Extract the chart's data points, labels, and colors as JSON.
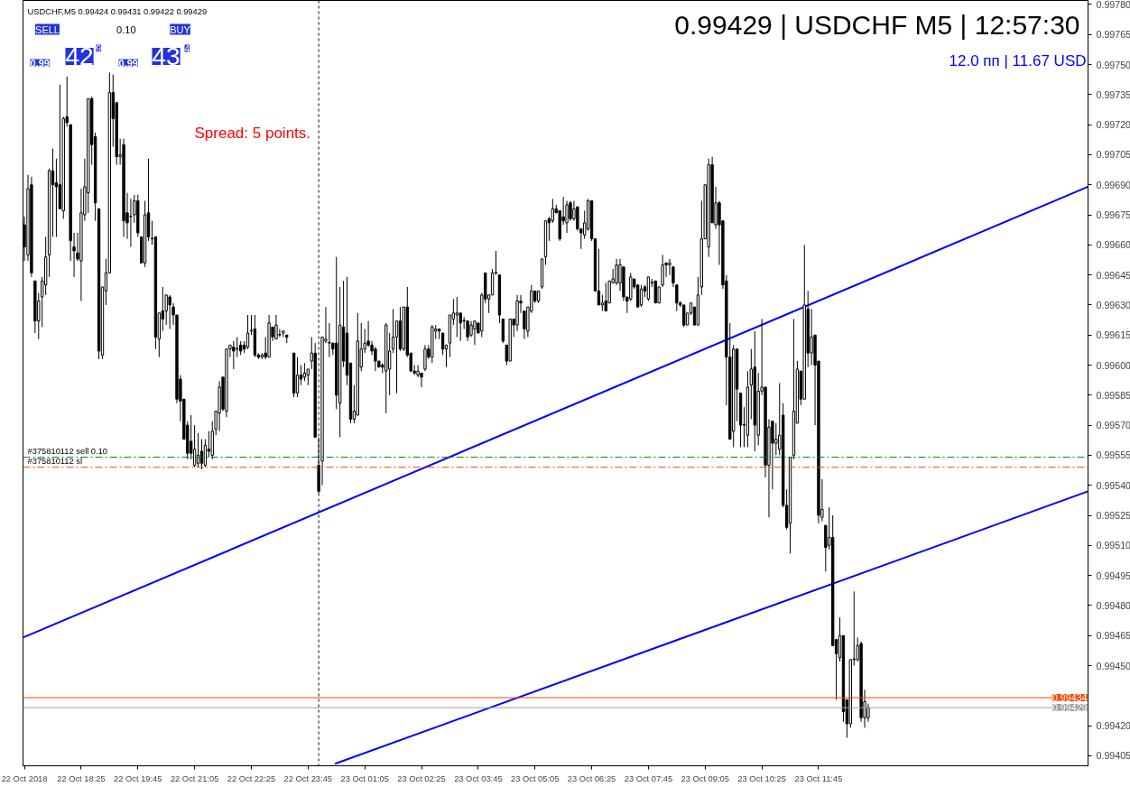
{
  "chart_data": {
    "type": "candlestick",
    "title": "USDCHF,M5  0.99424 0.99431 0.99422 0.99429",
    "annotations": [
      "0.99429 | USDCHF M5 | 12:57:30",
      "12.0 пп | 11.67 USD",
      "Spread: 5 points.",
      "SELL",
      "0.10",
      "BUY",
      "0.99",
      "42",
      "9",
      "0.99",
      "43",
      "4"
    ],
    "x": [
      "2018-10-22T17:05",
      "2018-10-22T17:10",
      "2018-10-22T17:15",
      "2018-10-22T17:20",
      "2018-10-22T17:25",
      "2018-10-22T17:30",
      "2018-10-22T17:35",
      "2018-10-22T17:40",
      "2018-10-22T17:45",
      "2018-10-22T17:50",
      "2018-10-22T17:55",
      "2018-10-22T18:00",
      "2018-10-22T18:05",
      "2018-10-22T18:10",
      "2018-10-22T18:15",
      "2018-10-22T18:20",
      "2018-10-22T18:25",
      "2018-10-22T18:30",
      "2018-10-22T18:35",
      "2018-10-22T18:40",
      "2018-10-22T18:45",
      "2018-10-22T18:50",
      "2018-10-22T18:55",
      "2018-10-22T19:00",
      "2018-10-22T19:05",
      "2018-10-22T19:10",
      "2018-10-22T19:15",
      "2018-10-22T19:20",
      "2018-10-22T19:25",
      "2018-10-22T19:30",
      "2018-10-22T19:35",
      "2018-10-22T19:40",
      "2018-10-22T19:45",
      "2018-10-22T19:50",
      "2018-10-22T19:55",
      "2018-10-22T20:00",
      "2018-10-22T20:05",
      "2018-10-22T20:10",
      "2018-10-22T20:15",
      "2018-10-22T20:20",
      "2018-10-22T20:25",
      "2018-10-22T20:30",
      "2018-10-22T20:35",
      "2018-10-22T20:40",
      "2018-10-22T20:45",
      "2018-10-22T20:50",
      "2018-10-22T20:55",
      "2018-10-22T21:00",
      "2018-10-22T21:05",
      "2018-10-22T21:10",
      "2018-10-22T21:15",
      "2018-10-22T21:20",
      "2018-10-22T21:25",
      "2018-10-22T21:30",
      "2018-10-22T21:35",
      "2018-10-22T21:40",
      "2018-10-22T21:45",
      "2018-10-22T21:50",
      "2018-10-22T21:55",
      "2018-10-22T22:00",
      "2018-10-22T22:05",
      "2018-10-22T22:10",
      "2018-10-22T22:15",
      "2018-10-22T22:20",
      "2018-10-22T22:25",
      "2018-10-22T22:30",
      "2018-10-22T22:35",
      "2018-10-22T22:40",
      "2018-10-22T22:45",
      "2018-10-22T22:50",
      "2018-10-22T22:55",
      "2018-10-22T23:00",
      "2018-10-22T23:05",
      "2018-10-22T23:10",
      "2018-10-22T23:15",
      "2018-10-22T23:25",
      "2018-10-22T23:30",
      "2018-10-22T23:35",
      "2018-10-22T23:40",
      "2018-10-22T23:45",
      "2018-10-22T23:50",
      "2018-10-22T23:55",
      "2018-10-23T00:00",
      "2018-10-23T00:05",
      "2018-10-23T00:10",
      "2018-10-23T00:15",
      "2018-10-23T00:20",
      "2018-10-23T00:25",
      "2018-10-23T00:30",
      "2018-10-23T00:35",
      "2018-10-23T00:40",
      "2018-10-23T00:45",
      "2018-10-23T00:50",
      "2018-10-23T00:55",
      "2018-10-23T01:00",
      "2018-10-23T01:05",
      "2018-10-23T01:10",
      "2018-10-23T01:15",
      "2018-10-23T01:20",
      "2018-10-23T01:25",
      "2018-10-23T01:30",
      "2018-10-23T01:35",
      "2018-10-23T01:40",
      "2018-10-23T01:45",
      "2018-10-23T01:50",
      "2018-10-23T01:55",
      "2018-10-23T02:00",
      "2018-10-23T02:05",
      "2018-10-23T02:10",
      "2018-10-23T02:15",
      "2018-10-23T02:20",
      "2018-10-23T02:25",
      "2018-10-23T02:30",
      "2018-10-23T02:35",
      "2018-10-23T02:40",
      "2018-10-23T02:45",
      "2018-10-23T02:50",
      "2018-10-23T02:55",
      "2018-10-23T03:00",
      "2018-10-23T03:05",
      "2018-10-23T03:10",
      "2018-10-23T03:15",
      "2018-10-23T03:20",
      "2018-10-23T03:25",
      "2018-10-23T03:30",
      "2018-10-23T03:35",
      "2018-10-23T03:40",
      "2018-10-23T03:45",
      "2018-10-23T03:50",
      "2018-10-23T03:55",
      "2018-10-23T04:00",
      "2018-10-23T04:05",
      "2018-10-23T04:10",
      "2018-10-23T04:15",
      "2018-10-23T04:20",
      "2018-10-23T04:25",
      "2018-10-23T04:30",
      "2018-10-23T04:35",
      "2018-10-23T04:40",
      "2018-10-23T04:45",
      "2018-10-23T04:50",
      "2018-10-23T04:55",
      "2018-10-23T05:00",
      "2018-10-23T05:05",
      "2018-10-23T05:10",
      "2018-10-23T05:15",
      "2018-10-23T05:20",
      "2018-10-23T05:25",
      "2018-10-23T05:30",
      "2018-10-23T05:35",
      "2018-10-23T05:40",
      "2018-10-23T05:45",
      "2018-10-23T05:50",
      "2018-10-23T05:55",
      "2018-10-23T06:00",
      "2018-10-23T06:05",
      "2018-10-23T06:10",
      "2018-10-23T06:15",
      "2018-10-23T06:20",
      "2018-10-23T06:25",
      "2018-10-23T06:30",
      "2018-10-23T06:35",
      "2018-10-23T06:40",
      "2018-10-23T06:45",
      "2018-10-23T06:50",
      "2018-10-23T06:55",
      "2018-10-23T07:00",
      "2018-10-23T07:05",
      "2018-10-23T07:10",
      "2018-10-23T07:15",
      "2018-10-23T07:20",
      "2018-10-23T07:25",
      "2018-10-23T07:30",
      "2018-10-23T07:35",
      "2018-10-23T07:40",
      "2018-10-23T07:45",
      "2018-10-23T07:50",
      "2018-10-23T07:55",
      "2018-10-23T08:00",
      "2018-10-23T08:05",
      "2018-10-23T08:10",
      "2018-10-23T08:15",
      "2018-10-23T08:20",
      "2018-10-23T08:25",
      "2018-10-23T08:30",
      "2018-10-23T08:35",
      "2018-10-23T08:40",
      "2018-10-23T08:45",
      "2018-10-23T08:50",
      "2018-10-23T08:55",
      "2018-10-23T09:00",
      "2018-10-23T09:05",
      "2018-10-23T09:10",
      "2018-10-23T09:15",
      "2018-10-23T09:20",
      "2018-10-23T09:25",
      "2018-10-23T09:30",
      "2018-10-23T09:35",
      "2018-10-23T09:40",
      "2018-10-23T09:45",
      "2018-10-23T09:50",
      "2018-10-23T09:55",
      "2018-10-23T10:00",
      "2018-10-23T10:05",
      "2018-10-23T10:10",
      "2018-10-23T10:15",
      "2018-10-23T10:20",
      "2018-10-23T10:25",
      "2018-10-23T10:30",
      "2018-10-23T10:35",
      "2018-10-23T10:40",
      "2018-10-23T10:45",
      "2018-10-23T10:50",
      "2018-10-23T10:55",
      "2018-10-23T11:00",
      "2018-10-23T11:05",
      "2018-10-23T11:10",
      "2018-10-23T11:15",
      "2018-10-23T11:20",
      "2018-10-23T11:25",
      "2018-10-23T11:30",
      "2018-10-23T11:35",
      "2018-10-23T11:40",
      "2018-10-23T11:45",
      "2018-10-23T11:50",
      "2018-10-23T11:55",
      "2018-10-23T12:00",
      "2018-10-23T12:05",
      "2018-10-23T12:10",
      "2018-10-23T12:15",
      "2018-10-23T12:20",
      "2018-10-23T12:25",
      "2018-10-23T12:30",
      "2018-10-23T12:35",
      "2018-10-23T12:40",
      "2018-10-23T12:45",
      "2018-10-23T12:50",
      "2018-10-23T12:55"
    ],
    "ohlc": [
      [
        0.9967,
        0.99674,
        0.99652,
        0.99659
      ],
      [
        0.99655,
        0.99695,
        0.99652,
        0.99688
      ],
      [
        0.9969,
        0.99694,
        0.99644,
        0.99646
      ],
      [
        0.99642,
        0.99642,
        0.99616,
        0.99622
      ],
      [
        0.99622,
        0.99636,
        0.99613,
        0.99632
      ],
      [
        0.99634,
        0.99644,
        0.99619,
        0.99642
      ],
      [
        0.9964,
        0.99664,
        0.99635,
        0.99654
      ],
      [
        0.99655,
        0.99698,
        0.99644,
        0.99697
      ],
      [
        0.99697,
        0.99708,
        0.99664,
        0.9969
      ],
      [
        0.99691,
        0.99703,
        0.99664,
        0.99689
      ],
      [
        0.9969,
        0.9974,
        0.99678,
        0.99678
      ],
      [
        0.99677,
        0.99724,
        0.99673,
        0.99723
      ],
      [
        0.99724,
        0.99744,
        0.99719,
        0.99721
      ],
      [
        0.9972,
        0.9972,
        0.99652,
        0.99662
      ],
      [
        0.99659,
        0.99666,
        0.99644,
        0.99657
      ],
      [
        0.99656,
        0.99666,
        0.99652,
        0.99653
      ],
      [
        0.99652,
        0.99688,
        0.99632,
        0.99676
      ],
      [
        0.99675,
        0.99703,
        0.99672,
        0.99689
      ],
      [
        0.99686,
        0.99733,
        0.99676,
        0.99733
      ],
      [
        0.99733,
        0.99734,
        0.997,
        0.9971
      ],
      [
        0.99714,
        0.99716,
        0.99672,
        0.99681
      ],
      [
        0.99678,
        0.99678,
        0.99603,
        0.99607
      ],
      [
        0.99605,
        0.99639,
        0.99603,
        0.99639
      ],
      [
        0.99637,
        0.99653,
        0.9963,
        0.99646
      ],
      [
        0.99646,
        0.99746,
        0.99646,
        0.99736
      ],
      [
        0.99736,
        0.99745,
        0.99709,
        0.99723
      ],
      [
        0.99731,
        0.99731,
        0.997,
        0.99704
      ],
      [
        0.99704,
        0.99713,
        0.997,
        0.99705
      ],
      [
        0.9971,
        0.99713,
        0.99664,
        0.99672
      ],
      [
        0.99676,
        0.99686,
        0.99663,
        0.99671
      ],
      [
        0.99674,
        0.99683,
        0.99659,
        0.99674
      ],
      [
        0.99675,
        0.99685,
        0.99671,
        0.99682
      ],
      [
        0.99682,
        0.99685,
        0.99664,
        0.99666
      ],
      [
        0.99664,
        0.99664,
        0.99651,
        0.99651
      ],
      [
        0.99651,
        0.99682,
        0.99649,
        0.99675
      ],
      [
        0.99676,
        0.99703,
        0.99662,
        0.99664
      ],
      [
        0.99663,
        0.99672,
        0.9966,
        0.99663
      ],
      [
        0.99664,
        0.99664,
        0.99608,
        0.99614
      ],
      [
        0.99613,
        0.99626,
        0.99604,
        0.99626
      ],
      [
        0.99627,
        0.99639,
        0.99617,
        0.99623
      ],
      [
        0.99627,
        0.99635,
        0.9962,
        0.99635
      ],
      [
        0.99634,
        0.99635,
        0.99618,
        0.9963
      ],
      [
        0.99629,
        0.99631,
        0.9962,
        0.99625
      ],
      [
        0.99625,
        0.99625,
        0.99581,
        0.99583
      ],
      [
        0.99593,
        0.99595,
        0.99572,
        0.99582
      ],
      [
        0.99583,
        0.99583,
        0.99563,
        0.99563
      ],
      [
        0.9957,
        0.99572,
        0.99553,
        0.99556
      ],
      [
        0.99562,
        0.99575,
        0.99553,
        0.99556
      ],
      [
        0.9955,
        0.9957,
        0.99549,
        0.99558
      ],
      [
        0.99551,
        0.99566,
        0.99549,
        0.99555
      ],
      [
        0.99557,
        0.99563,
        0.99548,
        0.99551
      ],
      [
        0.9955,
        0.99563,
        0.99549,
        0.9956
      ],
      [
        0.99558,
        0.99567,
        0.99554,
        0.99557
      ],
      [
        0.99555,
        0.99572,
        0.99553,
        0.99567
      ],
      [
        0.99568,
        0.99577,
        0.99565,
        0.99577
      ],
      [
        0.99576,
        0.99592,
        0.99567,
        0.99589
      ],
      [
        0.99594,
        0.99594,
        0.99577,
        0.99578
      ],
      [
        0.99577,
        0.99608,
        0.99574,
        0.99608
      ],
      [
        0.99608,
        0.9961,
        0.99604,
        0.9961
      ],
      [
        0.99609,
        0.99612,
        0.99598,
        0.99607
      ],
      [
        0.99608,
        0.99614,
        0.99604,
        0.99608
      ],
      [
        0.9961,
        0.99612,
        0.99605,
        0.99607
      ],
      [
        0.9961,
        0.99612,
        0.99606,
        0.99608
      ],
      [
        0.99609,
        0.99625,
        0.99608,
        0.99616
      ],
      [
        0.99617,
        0.99625,
        0.99615,
        0.99617
      ],
      [
        0.99618,
        0.99625,
        0.99604,
        0.99605
      ],
      [
        0.99605,
        0.99606,
        0.99603,
        0.99604
      ],
      [
        0.99604,
        0.99606,
        0.99603,
        0.99605
      ],
      [
        0.99606,
        0.99614,
        0.99603,
        0.99604
      ],
      [
        0.99604,
        0.99625,
        0.99604,
        0.99621
      ],
      [
        0.99619,
        0.99619,
        0.99612,
        0.99614
      ],
      [
        0.99613,
        0.99625,
        0.99613,
        0.9962
      ],
      [
        0.99615,
        0.99618,
        0.99614,
        0.99615
      ],
      [
        0.99616,
        0.99617,
        0.99614,
        0.99617
      ],
      [
        0.99615,
        0.99615,
        0.99611,
        0.99614
      ],
      [
        0.99606,
        0.99606,
        0.99584,
        0.99586
      ],
      [
        0.99586,
        0.99604,
        0.99584,
        0.99595
      ],
      [
        0.99595,
        0.996,
        0.9959,
        0.99593
      ],
      [
        0.99594,
        0.99601,
        0.99592,
        0.99596
      ],
      [
        0.99595,
        0.99598,
        0.9959,
        0.99598
      ],
      [
        0.99602,
        0.99614,
        0.99598,
        0.99606
      ],
      [
        0.99606,
        0.99611,
        0.99564,
        0.99564
      ],
      [
        0.9955,
        0.99564,
        0.99536,
        0.99537
      ],
      [
        0.99552,
        0.99614,
        0.9954,
        0.99614
      ],
      [
        0.99612,
        0.99629,
        0.99611,
        0.99613
      ],
      [
        0.99611,
        0.99621,
        0.99604,
        0.99611
      ],
      [
        0.99611,
        0.99611,
        0.99605,
        0.99608
      ],
      [
        0.99611,
        0.99654,
        0.99578,
        0.99585
      ],
      [
        0.99581,
        0.99639,
        0.99564,
        0.9962
      ],
      [
        0.99619,
        0.99642,
        0.99599,
        0.99602
      ],
      [
        0.99616,
        0.99644,
        0.9959,
        0.99595
      ],
      [
        0.99601,
        0.99601,
        0.99571,
        0.99573
      ],
      [
        0.99573,
        0.9959,
        0.99571,
        0.99577
      ],
      [
        0.99575,
        0.99626,
        0.99575,
        0.99612
      ],
      [
        0.99599,
        0.99621,
        0.99597,
        0.99608
      ],
      [
        0.99608,
        0.99618,
        0.99606,
        0.99611
      ],
      [
        0.99612,
        0.99622,
        0.99609,
        0.9961
      ],
      [
        0.9961,
        0.99612,
        0.99605,
        0.99607
      ],
      [
        0.99608,
        0.99609,
        0.99597,
        0.99602
      ],
      [
        0.99602,
        0.99602,
        0.99599,
        0.99599
      ],
      [
        0.996,
        0.99601,
        0.99596,
        0.99599
      ],
      [
        0.99597,
        0.99621,
        0.99576,
        0.9962
      ],
      [
        0.99598,
        0.99616,
        0.99585,
        0.99607
      ],
      [
        0.99608,
        0.99628,
        0.99606,
        0.99614
      ],
      [
        0.99614,
        0.99622,
        0.99586,
        0.99622
      ],
      [
        0.99622,
        0.99629,
        0.99607,
        0.99608
      ],
      [
        0.99608,
        0.99629,
        0.99607,
        0.99629
      ],
      [
        0.99629,
        0.99639,
        0.99604,
        0.99605
      ],
      [
        0.99606,
        0.99606,
        0.99597,
        0.99597
      ],
      [
        0.99597,
        0.996,
        0.99595,
        0.99596
      ],
      [
        0.99595,
        0.996,
        0.99594,
        0.99597
      ],
      [
        0.99596,
        0.99596,
        0.99589,
        0.99594
      ],
      [
        0.99598,
        0.9961,
        0.99597,
        0.99608
      ],
      [
        0.99608,
        0.9961,
        0.99603,
        0.99604
      ],
      [
        0.99604,
        0.9962,
        0.99601,
        0.99619
      ],
      [
        0.99617,
        0.9962,
        0.99613,
        0.99618
      ],
      [
        0.99618,
        0.99618,
        0.99613,
        0.99617
      ],
      [
        0.99616,
        0.99616,
        0.99605,
        0.99608
      ],
      [
        0.99608,
        0.9961,
        0.99599,
        0.9961
      ],
      [
        0.99611,
        0.99625,
        0.99604,
        0.99625
      ],
      [
        0.99623,
        0.99633,
        0.9962,
        0.99626
      ],
      [
        0.99625,
        0.99634,
        0.99614,
        0.99626
      ],
      [
        0.99626,
        0.99626,
        0.99612,
        0.99621
      ],
      [
        0.99622,
        0.99624,
        0.99618,
        0.99622
      ],
      [
        0.99622,
        0.99622,
        0.99612,
        0.99614
      ],
      [
        0.99615,
        0.99622,
        0.99614,
        0.9962
      ],
      [
        0.99618,
        0.99622,
        0.9961,
        0.99622
      ],
      [
        0.99621,
        0.99621,
        0.99616,
        0.99616
      ],
      [
        0.99617,
        0.99636,
        0.99614,
        0.99635
      ],
      [
        0.99646,
        0.99646,
        0.99631,
        0.99633
      ],
      [
        0.99633,
        0.99635,
        0.99626,
        0.99635
      ],
      [
        0.99635,
        0.99648,
        0.99635,
        0.99646
      ],
      [
        0.99646,
        0.99657,
        0.99645,
        0.99646
      ],
      [
        0.99645,
        0.99645,
        0.99621,
        0.99625
      ],
      [
        0.99623,
        0.99623,
        0.99611,
        0.99612
      ],
      [
        0.9961,
        0.9961,
        0.996,
        0.99602
      ],
      [
        0.99602,
        0.99623,
        0.99602,
        0.99623
      ],
      [
        0.99623,
        0.99623,
        0.99614,
        0.9962
      ],
      [
        0.9962,
        0.99635,
        0.99617,
        0.99632
      ],
      [
        0.99632,
        0.99635,
        0.99626,
        0.99631
      ],
      [
        0.99627,
        0.99627,
        0.99613,
        0.99618
      ],
      [
        0.99617,
        0.99629,
        0.99614,
        0.99629
      ],
      [
        0.99627,
        0.9964,
        0.99626,
        0.99637
      ],
      [
        0.99637,
        0.99637,
        0.99631,
        0.99632
      ],
      [
        0.99632,
        0.99637,
        0.99631,
        0.99637
      ],
      [
        0.99639,
        0.99653,
        0.99638,
        0.99653
      ],
      [
        0.99654,
        0.99672,
        0.9965,
        0.99672
      ],
      [
        0.99673,
        0.99674,
        0.99662,
        0.99671
      ],
      [
        0.99672,
        0.99683,
        0.99671,
        0.99678
      ],
      [
        0.99678,
        0.9968,
        0.99676,
        0.99676
      ],
      [
        0.99677,
        0.99677,
        0.99662,
        0.99663
      ],
      [
        0.99674,
        0.99684,
        0.9967,
        0.99672
      ],
      [
        0.99671,
        0.99682,
        0.99666,
        0.9968
      ],
      [
        0.99681,
        0.99682,
        0.99672,
        0.99673
      ],
      [
        0.99673,
        0.99682,
        0.99672,
        0.99678
      ],
      [
        0.99679,
        0.99679,
        0.99667,
        0.99668
      ],
      [
        0.99668,
        0.99668,
        0.99658,
        0.99666
      ],
      [
        0.99665,
        0.99677,
        0.99663,
        0.99671
      ],
      [
        0.99668,
        0.99683,
        0.99667,
        0.99682
      ],
      [
        0.99682,
        0.99682,
        0.99662,
        0.99663
      ],
      [
        0.99663,
        0.99663,
        0.99637,
        0.99637
      ],
      [
        0.99637,
        0.99658,
        0.9963,
        0.9963
      ],
      [
        0.9963,
        0.99635,
        0.99627,
        0.99631
      ],
      [
        0.99632,
        0.99641,
        0.99627,
        0.99627
      ],
      [
        0.99631,
        0.99642,
        0.99631,
        0.99642
      ],
      [
        0.99641,
        0.99648,
        0.99641,
        0.99643
      ],
      [
        0.99641,
        0.99653,
        0.9964,
        0.9965
      ],
      [
        0.99641,
        0.99653,
        0.99637,
        0.9965
      ],
      [
        0.99649,
        0.99649,
        0.99632,
        0.99634
      ],
      [
        0.99634,
        0.99634,
        0.99626,
        0.99632
      ],
      [
        0.99633,
        0.99646,
        0.99632,
        0.99644
      ],
      [
        0.99643,
        0.99643,
        0.99638,
        0.99639
      ],
      [
        0.9964,
        0.9964,
        0.99629,
        0.99629
      ],
      [
        0.9963,
        0.9964,
        0.99629,
        0.99638
      ],
      [
        0.99639,
        0.9964,
        0.99634,
        0.99637
      ],
      [
        0.99633,
        0.99644,
        0.99632,
        0.99644
      ],
      [
        0.99641,
        0.99643,
        0.99639,
        0.99641
      ],
      [
        0.99642,
        0.99642,
        0.99631,
        0.99631
      ],
      [
        0.99631,
        0.99639,
        0.99631,
        0.99639
      ],
      [
        0.9964,
        0.99655,
        0.99639,
        0.9965
      ],
      [
        0.99651,
        0.99651,
        0.99644,
        0.9965
      ],
      [
        0.9965,
        0.99653,
        0.99645,
        0.99651
      ],
      [
        0.99649,
        0.99649,
        0.99639,
        0.99641
      ],
      [
        0.9964,
        0.9964,
        0.99627,
        0.99631
      ],
      [
        0.99631,
        0.99632,
        0.99629,
        0.9963
      ],
      [
        0.9963,
        0.9963,
        0.99619,
        0.9962
      ],
      [
        0.9962,
        0.99626,
        0.9962,
        0.99626
      ],
      [
        0.99626,
        0.99631,
        0.99625,
        0.99631
      ],
      [
        0.99629,
        0.99629,
        0.9962,
        0.9962
      ],
      [
        0.9962,
        0.99644,
        0.9962,
        0.99635
      ],
      [
        0.99639,
        0.99682,
        0.99635,
        0.99663
      ],
      [
        0.99663,
        0.9969,
        0.99663,
        0.9969
      ],
      [
        0.99659,
        0.99703,
        0.99654,
        0.997
      ],
      [
        0.997,
        0.99704,
        0.99671,
        0.99671
      ],
      [
        0.9967,
        0.99689,
        0.99668,
        0.99681
      ],
      [
        0.99681,
        0.99682,
        0.9965,
        0.9967
      ],
      [
        0.99672,
        0.99672,
        0.99638,
        0.9964
      ],
      [
        0.99642,
        0.99645,
        0.9958,
        0.99604
      ],
      [
        0.99604,
        0.99621,
        0.99563,
        0.99563
      ],
      [
        0.99567,
        0.9961,
        0.99559,
        0.99608
      ],
      [
        0.99608,
        0.99608,
        0.99572,
        0.99588
      ],
      [
        0.99586,
        0.99586,
        0.99559,
        0.9957
      ],
      [
        0.9957,
        0.99579,
        0.99559,
        0.9957
      ],
      [
        0.99565,
        0.99597,
        0.99559,
        0.99589
      ],
      [
        0.9959,
        0.99608,
        0.99573,
        0.99598
      ],
      [
        0.99599,
        0.99617,
        0.99557,
        0.9957
      ],
      [
        0.99565,
        0.99596,
        0.9956,
        0.99587
      ],
      [
        0.99587,
        0.99623,
        0.99585,
        0.99589
      ],
      [
        0.99589,
        0.99589,
        0.99544,
        0.9955
      ],
      [
        0.9955,
        0.99573,
        0.99524,
        0.99569
      ],
      [
        0.99572,
        0.99572,
        0.99538,
        0.99561
      ],
      [
        0.99561,
        0.99571,
        0.99555,
        0.99563
      ],
      [
        0.99558,
        0.99591,
        0.99555,
        0.99565
      ],
      [
        0.99575,
        0.99581,
        0.99529,
        0.9953
      ],
      [
        0.9953,
        0.99538,
        0.99518,
        0.99519
      ],
      [
        0.99521,
        0.99554,
        0.99506,
        0.99554
      ],
      [
        0.99555,
        0.99623,
        0.99553,
        0.99577
      ],
      [
        0.99571,
        0.99602,
        0.99571,
        0.99598
      ],
      [
        0.99597,
        0.99597,
        0.9958,
        0.99583
      ],
      [
        0.99583,
        0.9966,
        0.99583,
        0.9963
      ],
      [
        0.99628,
        0.99637,
        0.99599,
        0.99606
      ],
      [
        0.99606,
        0.99628,
        0.996,
        0.99614
      ],
      [
        0.99615,
        0.99615,
        0.9957,
        0.996
      ],
      [
        0.99602,
        0.99602,
        0.99521,
        0.99525
      ],
      [
        0.99524,
        0.99543,
        0.99522,
        0.99528
      ],
      [
        0.9952,
        0.9952,
        0.99497,
        0.99509
      ],
      [
        0.9951,
        0.99529,
        0.99508,
        0.99514
      ],
      [
        0.99514,
        0.99525,
        0.9946,
        0.9946
      ],
      [
        0.99463,
        0.99463,
        0.99433,
        0.99456
      ],
      [
        0.99454,
        0.99474,
        0.99452,
        0.99465
      ],
      [
        0.99465,
        0.99465,
        0.99422,
        0.99427
      ],
      [
        0.99433,
        0.99433,
        0.99414,
        0.99421
      ],
      [
        0.99421,
        0.99453,
        0.99419,
        0.99453
      ],
      [
        0.99453,
        0.99487,
        0.9945,
        0.99453
      ],
      [
        0.99453,
        0.99464,
        0.99452,
        0.9946
      ],
      [
        0.99461,
        0.99462,
        0.99422,
        0.99424
      ],
      [
        0.99424,
        0.99438,
        0.99419,
        0.99432
      ],
      [
        0.99424,
        0.99431,
        0.99422,
        0.99429
      ]
    ],
    "series": [
      {
        "type": "line",
        "color": "#0000ff",
        "x": [
          "2018-10-22T17:03",
          "2018-10-23T18:05"
        ],
        "values": [
          0.99464,
          0.99689
        ]
      },
      {
        "type": "line",
        "color": "#0000ff",
        "x": [
          "2018-10-23T00:23",
          "2018-10-23T18:05"
        ],
        "values": [
          0.99401,
          0.99537
        ]
      }
    ],
    "xlim": [
      "2018-10-22T17:03",
      "2018-10-23T18:05"
    ],
    "ylim": [
      0.994,
      0.99782
    ],
    "xticks": [
      {
        "value": "2018-10-22T17:05",
        "label": "22 Oct 2018"
      },
      {
        "value": "2018-10-22T18:25",
        "label": "22 Oct 18:25"
      },
      {
        "value": "2018-10-22T19:45",
        "label": "22 Oct 19:45"
      },
      {
        "value": "2018-10-22T21:05",
        "label": "22 Oct 21:05"
      },
      {
        "value": "2018-10-22T22:25",
        "label": "22 Oct 22:25"
      },
      {
        "value": "2018-10-22T23:45",
        "label": "22 Oct 23:45"
      },
      {
        "value": "2018-10-23T01:05",
        "label": "23 Oct 01:05"
      },
      {
        "value": "2018-10-23T02:25",
        "label": "23 Oct 02:25"
      },
      {
        "value": "2018-10-23T03:45",
        "label": "23 Oct 03:45"
      },
      {
        "value": "2018-10-23T05:05",
        "label": "23 Oct 05:05"
      },
      {
        "value": "2018-10-23T06:25",
        "label": "23 Oct 06:25"
      },
      {
        "value": "2018-10-23T07:45",
        "label": "23 Oct 07:45"
      },
      {
        "value": "2018-10-23T09:05",
        "label": "23 Oct 09:05"
      },
      {
        "value": "2018-10-23T10:25",
        "label": "23 Oct 10:25"
      },
      {
        "value": "2018-10-23T11:45",
        "label": "23 Oct 11:45"
      }
    ],
    "yticks": [
      {
        "value": 0.9978,
        "label": "0.99780"
      },
      {
        "value": 0.99765,
        "label": "0.99765"
      },
      {
        "value": 0.9975,
        "label": "0.99750"
      },
      {
        "value": 0.99735,
        "label": "0.99735"
      },
      {
        "value": 0.9972,
        "label": "0.99720"
      },
      {
        "value": 0.99705,
        "label": "0.99705"
      },
      {
        "value": 0.9969,
        "label": "0.99690"
      },
      {
        "value": 0.99675,
        "label": "0.99675"
      },
      {
        "value": 0.9966,
        "label": "0.99660"
      },
      {
        "value": 0.99645,
        "label": "0.99645"
      },
      {
        "value": 0.9963,
        "label": "0.99630"
      },
      {
        "value": 0.99615,
        "label": "0.99615"
      },
      {
        "value": 0.996,
        "label": "0.99600"
      },
      {
        "value": 0.99585,
        "label": "0.99585"
      },
      {
        "value": 0.9957,
        "label": "0.99570"
      },
      {
        "value": 0.99555,
        "label": "0.99555"
      },
      {
        "value": 0.9954,
        "label": "0.99540"
      },
      {
        "value": 0.99525,
        "label": "0.99525"
      },
      {
        "value": 0.9951,
        "label": "0.99510"
      },
      {
        "value": 0.99495,
        "label": "0.99495"
      },
      {
        "value": 0.9948,
        "label": "0.99480"
      },
      {
        "value": 0.99465,
        "label": "0.99465"
      },
      {
        "value": 0.9945,
        "label": "0.99450"
      },
      {
        "value": 0.9942,
        "label": "0.99420"
      },
      {
        "value": 0.99405,
        "label": "0.99405"
      }
    ],
    "ref_lines": [
      {
        "axis": "y",
        "value": 0.99554,
        "label": "#375810112 sell 0.10",
        "color": "#008000",
        "line_style": "dashed"
      },
      {
        "axis": "y",
        "value": 0.99549,
        "label": "#375810112 sl",
        "color": "#ff4500",
        "line_style": "dashed"
      },
      {
        "axis": "y",
        "value": 0.99434,
        "label": "0.99434",
        "color": "#ff4500",
        "line_style": "solid"
      },
      {
        "axis": "y",
        "value": 0.99429,
        "label": "0.99429",
        "color": "#a0a0a0",
        "line_style": "solid"
      },
      {
        "axis": "x",
        "value": "2018-10-23T00:00",
        "color": "#000000",
        "line_style": "dotted"
      }
    ],
    "grid": false
  }
}
